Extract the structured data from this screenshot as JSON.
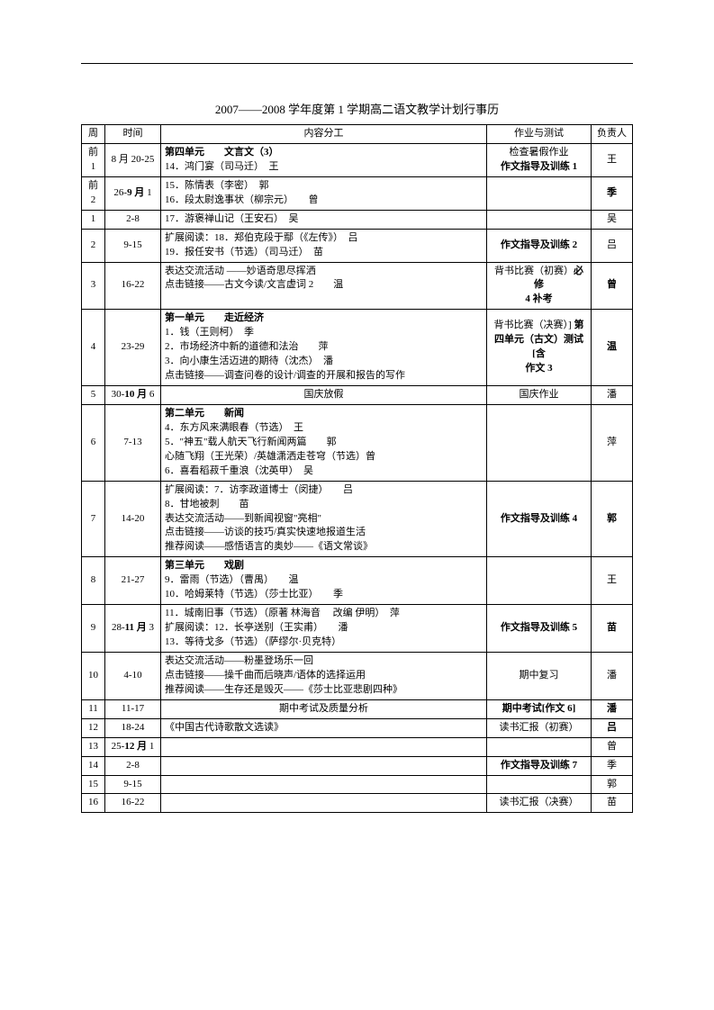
{
  "title": "2007——2008 学年度第 1 学期高二语文教学计划行事历",
  "headers": {
    "week": "周",
    "time": "时间",
    "content": "内容分工",
    "homework": "作业与测试",
    "owner": "负责人"
  },
  "rows": [
    {
      "week": "前 1",
      "time": "8 月 20-25",
      "content_lines": [
        {
          "text": "第四单元　　文言文（3）",
          "bold": true
        },
        {
          "text": "14．鸿门宴（司马迁）　王"
        }
      ],
      "content_align": "left",
      "homework_lines": [
        {
          "text": "检查暑假作业"
        },
        {
          "text": "作文指导及训练 1",
          "bold": true
        }
      ],
      "owner": "王"
    },
    {
      "week": "前 2",
      "time": "26-9 月 1",
      "time_bold_part": "9 月",
      "content_lines": [
        {
          "text": "15．陈情表（李密）　郭"
        },
        {
          "text": "16．段太尉逸事状（柳宗元）　　曾"
        }
      ],
      "content_align": "left",
      "homework_lines": [],
      "owner": "季",
      "owner_bold": true
    },
    {
      "week": "1",
      "time": "2-8",
      "content_lines": [
        {
          "text": "17．游褒禅山记（王安石）　吴"
        }
      ],
      "content_align": "left",
      "homework_lines": [],
      "owner": "吴"
    },
    {
      "week": "2",
      "time": "9-15",
      "content_lines": [
        {
          "text": "扩展阅读：18．郑伯克段于鄢（《左传》）　吕"
        },
        {
          "text": "19．报任安书（节选）（司马迁）　苗"
        }
      ],
      "content_align": "left",
      "homework_lines": [
        {
          "text": "作文指导及训练 2",
          "bold": true
        }
      ],
      "owner": "吕"
    },
    {
      "week": "3",
      "time": "16-22",
      "content_lines": [
        {
          "text": "表达交流活动 ——妙语奇思尽挥洒"
        },
        {
          "text": "点击链接——古文今读/文言虚词 2　　温"
        }
      ],
      "content_align": "left",
      "homework_lines": [
        {
          "text": "背书比赛（初赛）必修",
          "bold_tail": "必修"
        },
        {
          "text": "4 补考",
          "bold": true
        }
      ],
      "owner": "曾",
      "owner_bold": true
    },
    {
      "week": "4",
      "time": "23-29",
      "content_lines": [
        {
          "text": "第一单元　　走近经济",
          "bold": true
        },
        {
          "text": "1．钱（王则柯）　季"
        },
        {
          "text": "2．市场经济中新的道德和法治　　萍"
        },
        {
          "text": "3．向小康生活迈进的期待（沈杰）　潘"
        },
        {
          "text": "点击链接——调查问卷的设计/调查的开展和报告的写作"
        }
      ],
      "content_align": "left",
      "homework_lines": [
        {
          "text": "背书比赛（决赛）] 第",
          "bold_tail": "第"
        },
        {
          "text": "四单元（古文）测试[含",
          "bold": true
        },
        {
          "text": "作文 3",
          "bold": true
        }
      ],
      "owner": "温",
      "owner_bold": true
    },
    {
      "week": "5",
      "time": "30-10 月 6",
      "time_bold_part": "10 月",
      "content_lines": [
        {
          "text": "国庆放假"
        }
      ],
      "content_align": "center",
      "homework_lines": [
        {
          "text": "国庆作业"
        }
      ],
      "owner": "潘"
    },
    {
      "week": "6",
      "time": "7-13",
      "content_lines": [
        {
          "text": "第二单元　　新闻",
          "bold": true
        },
        {
          "text": "4．东方风来满眼春（节选）　王"
        },
        {
          "text": "5．\"神五\"载人航天飞行新闻两篇　　郭"
        },
        {
          "text": "心随飞翔（王光荣）/英雄潇洒走苍穹（节选）曾"
        },
        {
          "text": "6．喜看稻菽千重浪（沈英甲）　吴"
        }
      ],
      "content_align": "left",
      "homework_lines": [],
      "owner": "萍"
    },
    {
      "week": "7",
      "time": "14-20",
      "content_lines": [
        {
          "text": "扩展阅读：7．访李政道博士（闵捷）　　吕"
        },
        {
          "text": "8．甘地被刺　　苗"
        },
        {
          "text": "表达交流活动——到新闻视窗\"亮相\""
        },
        {
          "text": "点击链接——访谈的技巧/真实快速地报道生活"
        },
        {
          "text": "推荐阅读——感悟语言的奥妙——《语文常谈》"
        }
      ],
      "content_align": "left",
      "homework_lines": [
        {
          "text": "作文指导及训练 4",
          "bold": true
        }
      ],
      "owner": "郭",
      "owner_bold": true
    },
    {
      "week": "8",
      "time": "21-27",
      "content_lines": [
        {
          "text": "第三单元　　戏剧",
          "bold": true
        },
        {
          "text": "9．雷雨（节选）（曹禺）　　温"
        },
        {
          "text": "10．哈姆莱特（节选）（莎士比亚）　　季"
        }
      ],
      "content_align": "left",
      "homework_lines": [],
      "owner": "王"
    },
    {
      "week": "9",
      "time": "28-11 月 3",
      "time_bold_part": "11 月",
      "content_lines": [
        {
          "text": "11．城南旧事（节选）（原著 林海音　 改编 伊明）　萍"
        },
        {
          "text": "扩展阅读：12．长亭送别（王实甫）　　潘"
        },
        {
          "text": "13．等待戈多（节选）（萨缪尔·贝克特）"
        }
      ],
      "content_align": "left",
      "homework_lines": [
        {
          "text": "作文指导及训练 5",
          "bold": true
        }
      ],
      "owner": "苗",
      "owner_bold": true
    },
    {
      "week": "10",
      "time": "4-10",
      "content_lines": [
        {
          "text": "表达交流活动——粉墨登场乐一回"
        },
        {
          "text": "点击链接——操千曲而后晓声/语体的选择运用"
        },
        {
          "text": "推荐阅读——生存还是毁灭——《莎士比亚悲剧四种》"
        }
      ],
      "content_align": "left",
      "homework_lines": [
        {
          "text": "期中复习"
        }
      ],
      "owner": "潘"
    },
    {
      "week": "11",
      "time": "11-17",
      "content_lines": [
        {
          "text": "期中考试及质量分析"
        }
      ],
      "content_align": "center",
      "homework_lines": [
        {
          "text": "期中考试[作文 6]",
          "bold": true
        }
      ],
      "owner": "潘",
      "owner_bold": true
    },
    {
      "week": "12",
      "time": "18-24",
      "content_lines": [
        {
          "text": "《中国古代诗歌散文选读》"
        }
      ],
      "content_align": "left",
      "homework_lines": [
        {
          "text": "读书汇报（初赛）"
        }
      ],
      "owner": "吕",
      "owner_bold": true
    },
    {
      "week": "13",
      "time": "25-12 月 1",
      "time_bold_part": "12 月",
      "content_lines": [],
      "content_align": "left",
      "homework_lines": [],
      "owner": "曾"
    },
    {
      "week": "14",
      "time": "2-8",
      "content_lines": [],
      "content_align": "left",
      "homework_lines": [
        {
          "text": "作文指导及训练 7",
          "bold": true
        }
      ],
      "owner": "季"
    },
    {
      "week": "15",
      "time": "9-15",
      "content_lines": [],
      "content_align": "left",
      "homework_lines": [],
      "owner": "郭"
    },
    {
      "week": "16",
      "time": "16-22",
      "content_lines": [],
      "content_align": "left",
      "homework_lines": [
        {
          "text": "读书汇报（决赛）"
        }
      ],
      "owner": "苗"
    }
  ]
}
